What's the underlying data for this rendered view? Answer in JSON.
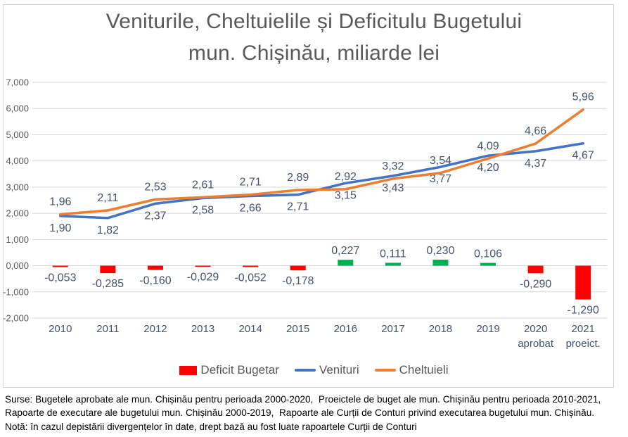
{
  "title": {
    "line1": "Veniturile, Cheltuielile și Deficitulu Bugetului",
    "line2": "mun. Chișinău, miliarde lei"
  },
  "legend": {
    "items": [
      {
        "label": "Deficit Bugetar",
        "color": "#FF0000",
        "swatch": "box"
      },
      {
        "label": "Venituri",
        "color": "#4472C4",
        "swatch": "line"
      },
      {
        "label": "Cheltuieli",
        "color": "#ED7D31",
        "swatch": "line"
      }
    ]
  },
  "footnote": {
    "lines": [
      "Surse: Bugetele aprobate ale mun. Chișinău pentru perioada 2000-2020,  Proeictele de buget ale mun. Chișinău pentru perioada 2010-2021,",
      "Rapoarte de executare ale bugetului mun. Chișinău 2000-2019,  Rapoarte ale Curții de Conturi privind executarea bugetului mun. Chișinău.",
      "Notă: în cazul depistării divergențelor în date, drept bază au fost luate rapoartele Curții de Conturi"
    ]
  },
  "chart_data": {
    "type": "combo-line-bar",
    "title": "Veniturile, Cheltuielile și Deficitulu Bugetului mun. Chișinău, miliarde lei",
    "unit": "miliarde lei",
    "categories": [
      "2010",
      "2011",
      "2012",
      "2013",
      "2014",
      "2015",
      "2016",
      "2017",
      "2018",
      "2019",
      "2020",
      "2021"
    ],
    "category_sublabels": [
      "",
      "",
      "",
      "",
      "",
      "",
      "",
      "",
      "",
      "",
      "aprobat",
      "proeict."
    ],
    "y_axis": {
      "min": -2,
      "max": 7,
      "step": 1,
      "tick_labels": [
        "7,000",
        "6,000",
        "5,000",
        "4,000",
        "3,000",
        "2,000",
        "1,000",
        "0,000",
        "-1,000",
        "-2,000"
      ],
      "gridlines": true
    },
    "legend_position": "bottom",
    "series": [
      {
        "name": "Deficit Bugetar",
        "type": "bar",
        "color_positive": "#00B050",
        "color_negative": "#FF0000",
        "values": [
          -0.053,
          -0.285,
          -0.16,
          -0.029,
          -0.052,
          -0.178,
          0.227,
          0.111,
          0.23,
          0.106,
          -0.29,
          -1.29
        ],
        "labels": [
          "-0,053",
          "-0,285",
          "-0,160",
          "-0,029",
          "-0,052",
          "-0,178",
          "0,227",
          "0,111",
          "0,230",
          "0,106",
          "-0,290",
          "-1,290"
        ],
        "label_position": "outside-end"
      },
      {
        "name": "Venituri",
        "type": "line",
        "color": "#4472C4",
        "values": [
          1.9,
          1.82,
          2.37,
          2.58,
          2.66,
          2.71,
          3.15,
          3.43,
          3.77,
          4.2,
          4.37,
          4.67
        ],
        "labels": [
          "1,90",
          "1,82",
          "2,37",
          "2,58",
          "2,66",
          "2,71",
          "3,15",
          "3,43",
          "3,77",
          "4,20",
          "4,37",
          "4,67"
        ],
        "label_position": "below"
      },
      {
        "name": "Cheltuieli",
        "type": "line",
        "color": "#ED7D31",
        "values": [
          1.96,
          2.11,
          2.53,
          2.61,
          2.71,
          2.89,
          2.92,
          3.32,
          3.54,
          4.09,
          4.66,
          5.96
        ],
        "labels": [
          "1,96",
          "2,11",
          "2,53",
          "2,61",
          "2,71",
          "2,89",
          "2,92",
          "3,32",
          "3,54",
          "4,09",
          "4,66",
          "5,96"
        ],
        "label_position": "above"
      }
    ]
  }
}
